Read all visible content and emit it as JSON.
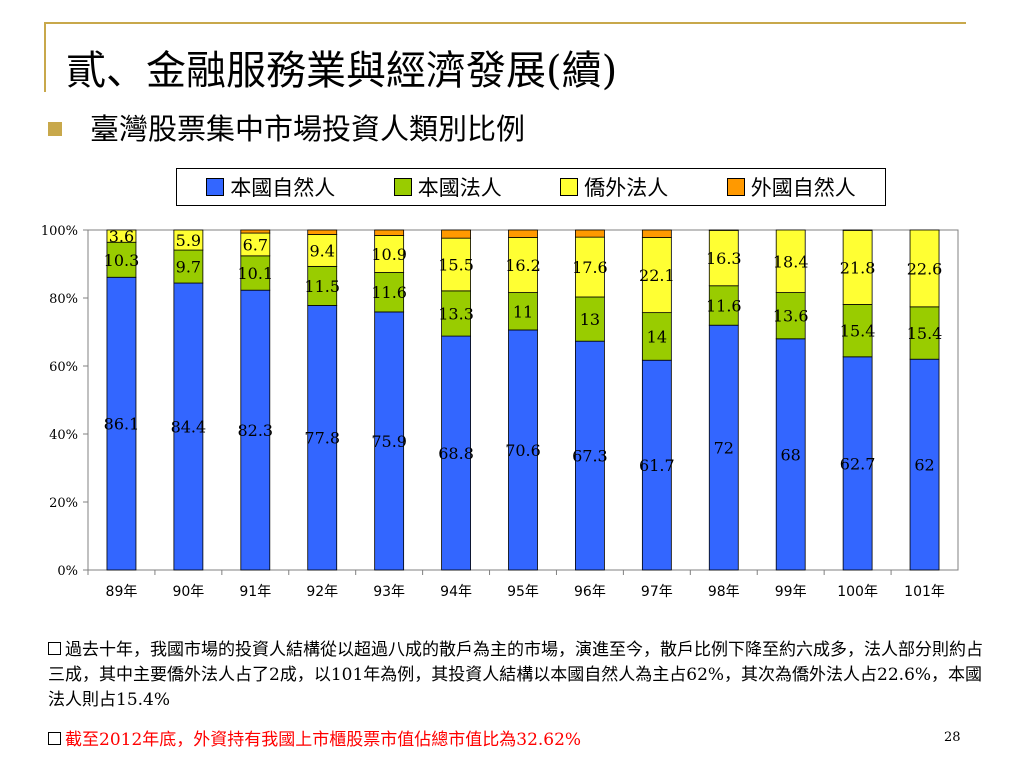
{
  "slide": {
    "title": "貳、金融服務業與經濟發展(續)",
    "subtitle": "臺灣股票集中市場投資人類別比例",
    "page_number": "28",
    "accent_color": "#c8a84b"
  },
  "notes": [
    "過去十年，我國市場的投資人結構從以超過八成的散戶為主的市場，演進至今，散戶比例下降至約六成多，法人部分則約占三成，其中主要僑外法人占了2成，以101年為例，其投資人結構以本國自然人為主占62%，其次為僑外法人占22.6%，本國法人則占15.4%",
    "截至2012年底，外資持有我國上市櫃股票市值佔總市值比為32.62%"
  ],
  "chart_data": {
    "type": "bar",
    "stacked": "percent",
    "categories": [
      "89年",
      "90年",
      "91年",
      "92年",
      "93年",
      "94年",
      "95年",
      "96年",
      "97年",
      "98年",
      "99年",
      "100年",
      "101年"
    ],
    "series": [
      {
        "name": "本國自然人",
        "color": "#3366ff",
        "values": [
          86.1,
          84.4,
          82.3,
          77.8,
          75.9,
          68.8,
          70.6,
          67.3,
          61.7,
          72,
          68,
          62.7,
          62
        ]
      },
      {
        "name": "本國法人",
        "color": "#99cc00",
        "values": [
          10.3,
          9.7,
          10.1,
          11.5,
          11.6,
          13.3,
          11,
          13,
          14,
          11.6,
          13.6,
          15.4,
          15.4
        ]
      },
      {
        "name": "僑外法人",
        "color": "#ffff33",
        "values": [
          3.6,
          5.9,
          6.7,
          9.4,
          10.9,
          15.5,
          16.2,
          17.6,
          22.1,
          16.3,
          18.4,
          21.8,
          22.6
        ]
      },
      {
        "name": "外國自然人",
        "color": "#ff9900",
        "values": [
          0.0,
          0.0,
          0.9,
          1.3,
          1.6,
          2.4,
          2.2,
          2.1,
          2.2,
          0.1,
          0.0,
          0.1,
          0.0
        ]
      }
    ],
    "data_labels": [
      [
        "86.1",
        "84.4",
        "82.3",
        "77.8",
        "75.9",
        "68.8",
        "70.6",
        "67.3",
        "61.7",
        "72",
        "68",
        "62.7",
        "62"
      ],
      [
        "10.3",
        "9.7",
        "10.1",
        "11.5",
        "11.6",
        "13.3",
        "11",
        "13",
        "14",
        "11.6",
        "13.6",
        "15.4",
        "15.4"
      ],
      [
        "3.6",
        "5.9",
        "6.7",
        "9.4",
        "10.9",
        "15.5",
        "16.2",
        "17.6",
        "22.1",
        "16.3",
        "18.4",
        "21.8",
        "22.6"
      ]
    ],
    "y_ticks": [
      "0%",
      "20%",
      "40%",
      "60%",
      "80%",
      "100%"
    ],
    "ylim": [
      0,
      100
    ],
    "legend_position": "top",
    "grid": false
  }
}
